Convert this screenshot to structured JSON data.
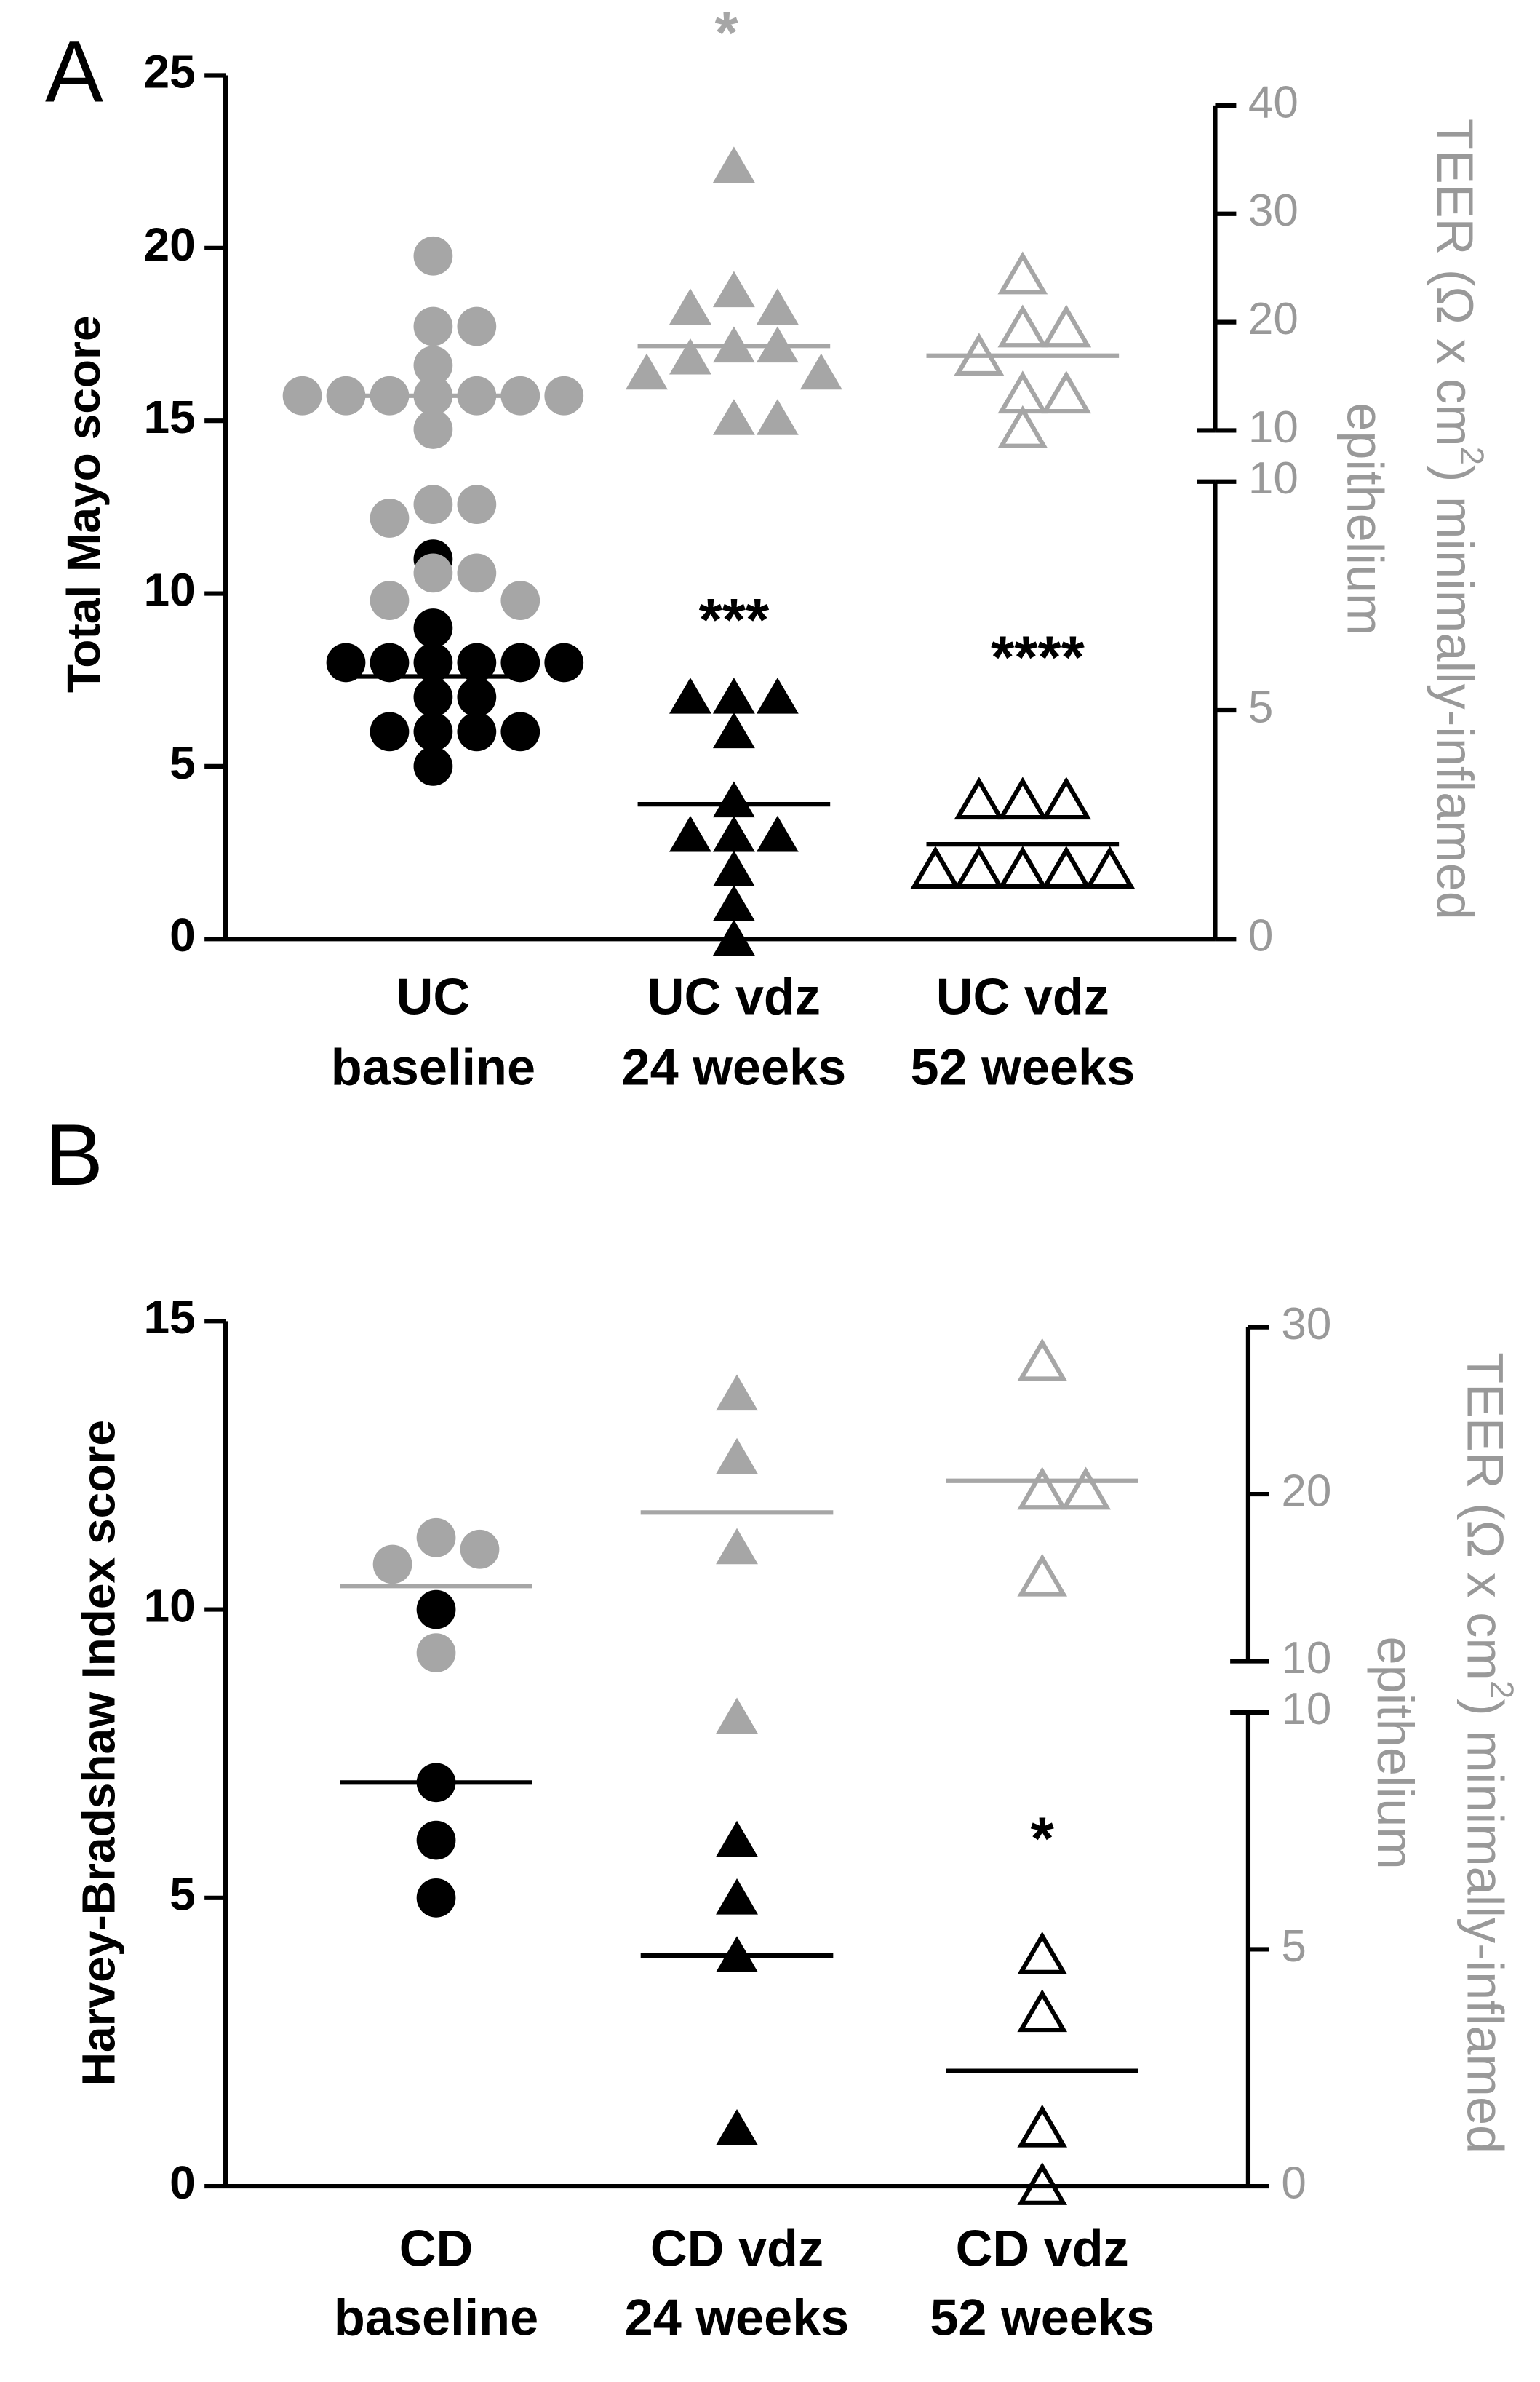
{
  "chart_data": [
    {
      "type": "strip",
      "panel": "A",
      "ylabel": "Total Mayo score",
      "y2label": {
        "before": "TEER (Ω x cm",
        "sup": "2",
        "after": ") minimally-inflamed",
        "line2": "epithelium"
      },
      "categories": [
        [
          "UC",
          "baseline"
        ],
        [
          "UC vdz",
          "24 weeks"
        ],
        [
          "UC vdz",
          "52 weeks"
        ]
      ],
      "ylim": [
        0,
        25
      ],
      "yticks": [
        0,
        5,
        10,
        15,
        20,
        25
      ],
      "y2lim_lower": [
        0,
        10
      ],
      "y2ticks_lower": [
        0,
        5,
        10
      ],
      "y2lim_upper": [
        10,
        40
      ],
      "y2ticks_upper": [
        10,
        20,
        30,
        40
      ],
      "annotations": [
        "*",
        "***",
        "****"
      ],
      "series": [
        {
          "axis": "y",
          "color": "#000000",
          "markers": [
            "circle",
            "triangle",
            "triangle-open"
          ],
          "values": [
            [
              11,
              9,
              8,
              8,
              8,
              8,
              8,
              8,
              7,
              7,
              6,
              6,
              6,
              6,
              5
            ],
            [
              7,
              7,
              7,
              6,
              4,
              3,
              3,
              3,
              2,
              1,
              0
            ],
            [
              4,
              4,
              4,
              2,
              2,
              2,
              2,
              2
            ]
          ],
          "medians": [
            7.6,
            3.9,
            2.74
          ]
        },
        {
          "axis": "y2",
          "color": "#a6a6a6",
          "markers": [
            "circle",
            "triangle",
            "triangle-open"
          ],
          "values": [
            [
              26.1,
              19.6,
              19.6,
              16,
              13.2,
              13.2,
              13.2,
              13.2,
              13.2,
              13.2,
              13.2,
              10.1,
              9.5,
              9.5,
              9.2,
              8,
              8,
              7.4,
              7.4
            ],
            [
              34.4,
              22.9,
              21.3,
              21.3,
              17.8,
              17.8,
              16.7,
              15.3,
              15.3,
              11.1,
              11.1
            ],
            [
              24.3,
              19.4,
              19.4,
              16.8,
              13.3,
              13.3,
              10.1
            ]
          ],
          "medians": [
            13.2,
            17.8,
            16.9
          ]
        }
      ]
    },
    {
      "type": "strip",
      "panel": "B",
      "ylabel": "Harvey-Bradshaw Index score",
      "y2label": {
        "before": "TEER (Ω x cm",
        "sup": "2",
        "after": ") minimally-inflamed",
        "line2": "epithelium"
      },
      "categories": [
        [
          "CD",
          "baseline"
        ],
        [
          "CD vdz",
          "24 weeks"
        ],
        [
          "CD vdz",
          "52 weeks"
        ]
      ],
      "ylim": [
        0,
        15
      ],
      "yticks": [
        0,
        5,
        10,
        15
      ],
      "y2lim_lower": [
        0,
        10
      ],
      "y2ticks_lower": [
        0,
        5,
        10
      ],
      "y2lim_upper": [
        10,
        30
      ],
      "y2ticks_upper": [
        10,
        20,
        30
      ],
      "annotations": [
        "*"
      ],
      "series": [
        {
          "axis": "y",
          "color": "#000000",
          "markers": [
            "circle",
            "triangle",
            "triangle-open"
          ],
          "values": [
            [
              10,
              7,
              6,
              5
            ],
            [
              6,
              5,
              4,
              1
            ],
            [
              4,
              3,
              1,
              0
            ]
          ],
          "medians": [
            7,
            4,
            2
          ]
        },
        {
          "axis": "y2",
          "color": "#a6a6a6",
          "markers": [
            "circle",
            "triangle",
            "triangle-open"
          ],
          "values": [
            [
              17.4,
              16.7,
              15.8,
              10.5
            ],
            [
              26,
              22.2,
              16.8,
              9.9
            ],
            [
              27.9,
              20.2,
              20.2,
              15
            ]
          ],
          "medians": [
            14.5,
            18.9,
            20.8
          ]
        }
      ]
    }
  ]
}
